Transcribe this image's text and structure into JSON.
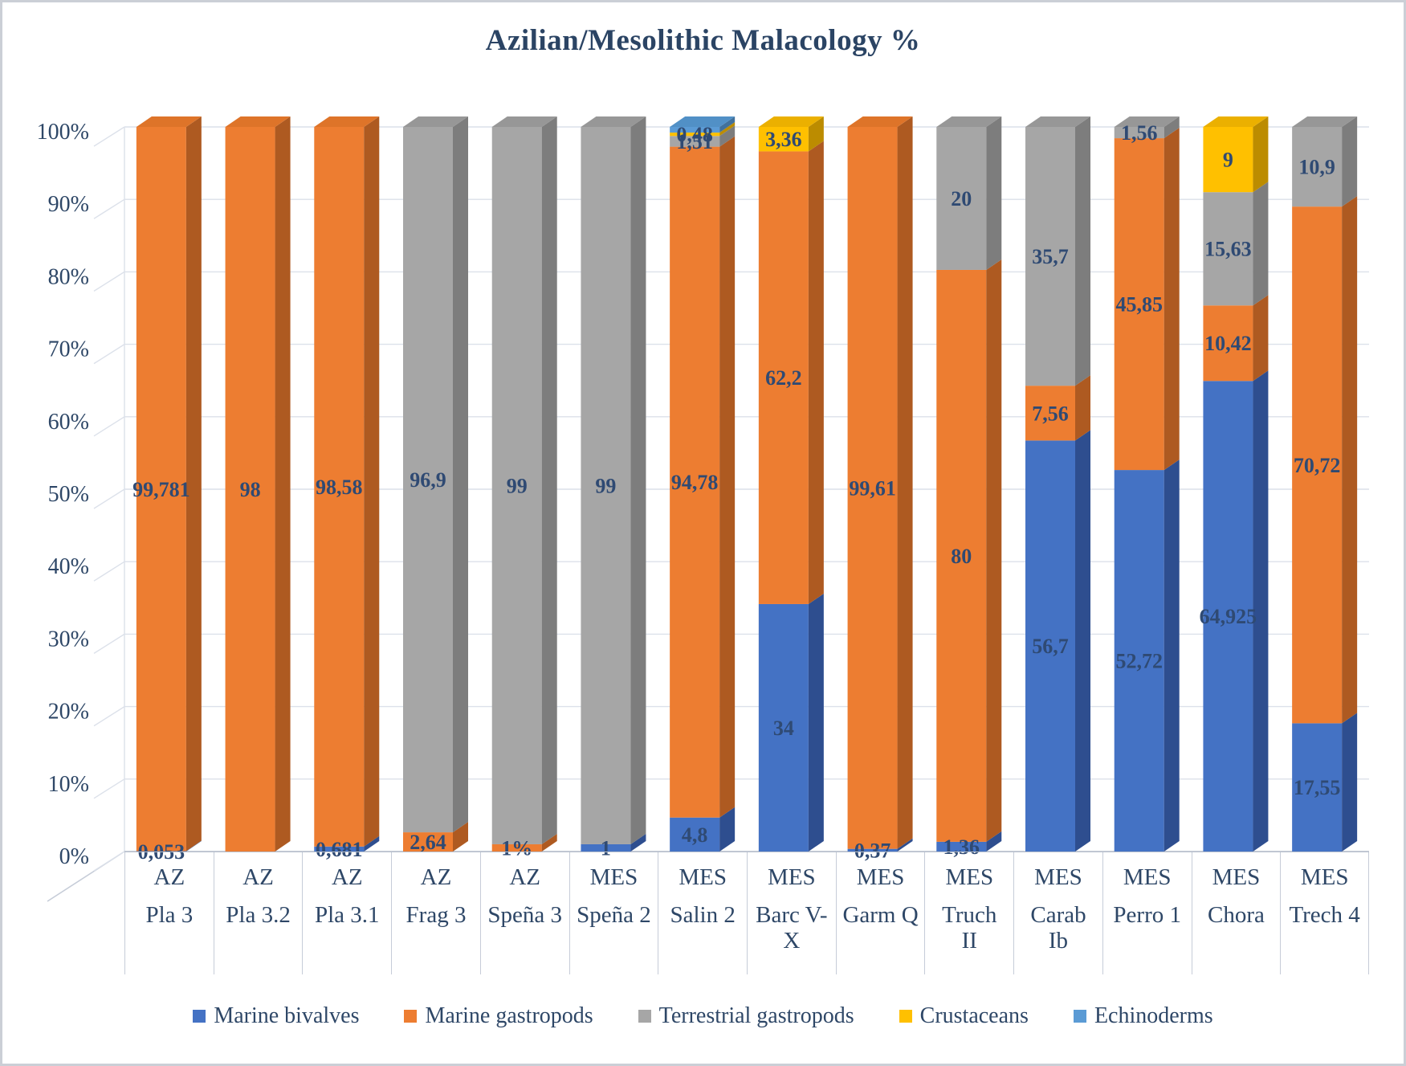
{
  "title": "Azilian/Mesolithic Malacology %",
  "y_axis_ticks": [
    "100%",
    "90%",
    "80%",
    "70%",
    "60%",
    "50%",
    "40%",
    "30%",
    "20%",
    "10%",
    "0%"
  ],
  "legend": [
    {
      "label": "Marine bivalves",
      "color": "#4472C4"
    },
    {
      "label": "Marine gastropods",
      "color": "#ED7D31"
    },
    {
      "label": "Terrestrial gastropods",
      "color": "#A6A6A6"
    },
    {
      "label": "Crustaceans",
      "color": "#FFC000"
    },
    {
      "label": "Echinoderms",
      "color": "#5B9BD5"
    }
  ],
  "colors": {
    "Marine bivalves": {
      "front": "#4472C4",
      "side": "#2E4E8F",
      "top": "#3C63B2"
    },
    "Marine gastropods": {
      "front": "#ED7D31",
      "side": "#AE5A21",
      "top": "#DE7429"
    },
    "Terrestrial gastropods": {
      "front": "#A6A6A6",
      "side": "#7D7D7D",
      "top": "#979797"
    },
    "Crustaceans": {
      "front": "#FFC000",
      "side": "#BC8C00",
      "top": "#EBB000"
    },
    "Echinoderms": {
      "front": "#5B9BD5",
      "side": "#41719C",
      "top": "#5190C6"
    }
  },
  "text_colors": {
    "labels": "#2F4A73",
    "axis": "#2E4767",
    "title": "#2B4464"
  },
  "chart_data": {
    "type": "bar",
    "variant": "100%-stacked-column-3d",
    "title": "Azilian/Mesolithic Malacology %",
    "xlabel": "",
    "ylabel": "",
    "ylim": [
      0,
      100
    ],
    "grid": true,
    "legend_position": "bottom",
    "series_names": [
      "Marine bivalves",
      "Marine gastropods",
      "Terrestrial gastropods",
      "Crustaceans",
      "Echinoderms"
    ],
    "categories": [
      {
        "group": "AZ",
        "site": "Pla 3"
      },
      {
        "group": "AZ",
        "site": "Pla 3.2"
      },
      {
        "group": "AZ",
        "site": "Pla 3.1"
      },
      {
        "group": "AZ",
        "site": "Frag 3"
      },
      {
        "group": "AZ",
        "site": "Speña 3"
      },
      {
        "group": "MES",
        "site": "Speña 2"
      },
      {
        "group": "MES",
        "site": "Salin 2"
      },
      {
        "group": "MES",
        "site": "Barc V-\nX"
      },
      {
        "group": "MES",
        "site": "Garm Q"
      },
      {
        "group": "MES",
        "site": "Truch\nII"
      },
      {
        "group": "MES",
        "site": "Carab\nIb"
      },
      {
        "group": "MES",
        "site": "Perro 1"
      },
      {
        "group": "MES",
        "site": "Chora"
      },
      {
        "group": "MES",
        "site": "Trech 4"
      }
    ],
    "bars": [
      {
        "group": "AZ",
        "site": "Pla 3",
        "segments": [
          {
            "series": "Marine bivalves",
            "value": 0.053,
            "label": "0,053"
          },
          {
            "series": "Marine gastropods",
            "value": 99.781,
            "label": "99,781"
          }
        ]
      },
      {
        "group": "AZ",
        "site": "Pla 3.2",
        "segments": [
          {
            "series": "Marine gastropods",
            "value": 98,
            "label": "98"
          }
        ]
      },
      {
        "group": "AZ",
        "site": "Pla 3.1",
        "segments": [
          {
            "series": "Marine bivalves",
            "value": 0.681,
            "label": "0,681"
          },
          {
            "series": "Marine gastropods",
            "value": 98.58,
            "label": "98,58"
          }
        ]
      },
      {
        "group": "AZ",
        "site": "Frag 3",
        "segments": [
          {
            "series": "Marine gastropods",
            "value": 2.64,
            "label": "2,64"
          },
          {
            "series": "Terrestrial gastropods",
            "value": 96.9,
            "label": "96,9"
          }
        ]
      },
      {
        "group": "AZ",
        "site": "Speña 3",
        "segments": [
          {
            "series": "Marine gastropods",
            "value": 1,
            "label": "1%"
          },
          {
            "series": "Terrestrial gastropods",
            "value": 99,
            "label": "99"
          }
        ]
      },
      {
        "group": "MES",
        "site": "Speña 2",
        "segments": [
          {
            "series": "Marine bivalves",
            "value": 1,
            "label": "1"
          },
          {
            "series": "Terrestrial gastropods",
            "value": 99,
            "label": "99"
          }
        ]
      },
      {
        "group": "MES",
        "site": "Salin 2",
        "segments": [
          {
            "series": "Marine bivalves",
            "value": 4.8,
            "label": "4,8"
          },
          {
            "series": "Marine gastropods",
            "value": 94.78,
            "label": "94,78"
          },
          {
            "series": "Terrestrial gastropods",
            "value": 1.51,
            "label": "1,51"
          },
          {
            "series": "Crustaceans",
            "value": 0.48,
            "label": "0,48"
          },
          {
            "series": "Echinoderms",
            "value": 0.8,
            "label": ""
          }
        ]
      },
      {
        "group": "MES",
        "site": "Barc V-X",
        "segments": [
          {
            "series": "Marine bivalves",
            "value": 34,
            "label": "34"
          },
          {
            "series": "Marine gastropods",
            "value": 62.2,
            "label": "62,2"
          },
          {
            "series": "Crustaceans",
            "value": 3.36,
            "label": "3,36"
          }
        ]
      },
      {
        "group": "MES",
        "site": "Garm Q",
        "segments": [
          {
            "series": "Marine bivalves",
            "value": 0.37,
            "label": "0,37"
          },
          {
            "series": "Marine gastropods",
            "value": 99.61,
            "label": "99,61"
          }
        ]
      },
      {
        "group": "MES",
        "site": "Truch II",
        "segments": [
          {
            "series": "Marine bivalves",
            "value": 1.36,
            "label": "1,36"
          },
          {
            "series": "Marine gastropods",
            "value": 80,
            "label": "80"
          },
          {
            "series": "Terrestrial gastropods",
            "value": 20,
            "label": "20"
          }
        ]
      },
      {
        "group": "MES",
        "site": "Carab Ib",
        "segments": [
          {
            "series": "Marine bivalves",
            "value": 56.7,
            "label": "56,7"
          },
          {
            "series": "Marine gastropods",
            "value": 7.56,
            "label": "7,56"
          },
          {
            "series": "Terrestrial gastropods",
            "value": 35.7,
            "label": "35,7"
          }
        ]
      },
      {
        "group": "MES",
        "site": "Perro 1",
        "segments": [
          {
            "series": "Marine bivalves",
            "value": 52.72,
            "label": "52,72"
          },
          {
            "series": "Marine gastropods",
            "value": 45.85,
            "label": "45,85"
          },
          {
            "series": "Terrestrial gastropods",
            "value": 1.56,
            "label": "1,56"
          }
        ]
      },
      {
        "group": "MES",
        "site": "Chora",
        "segments": [
          {
            "series": "Marine bivalves",
            "value": 64.925,
            "label": "64,925"
          },
          {
            "series": "Marine gastropods",
            "value": 10.42,
            "label": "10,42"
          },
          {
            "series": "Terrestrial gastropods",
            "value": 15.63,
            "label": "15,63"
          },
          {
            "series": "Crustaceans",
            "value": 9,
            "label": "9"
          }
        ]
      },
      {
        "group": "MES",
        "site": "Trech 4",
        "segments": [
          {
            "series": "Marine bivalves",
            "value": 17.55,
            "label": "17,55"
          },
          {
            "series": "Marine gastropods",
            "value": 70.72,
            "label": "70,72"
          },
          {
            "series": "Terrestrial gastropods",
            "value": 10.9,
            "label": "10,9"
          }
        ]
      }
    ]
  }
}
